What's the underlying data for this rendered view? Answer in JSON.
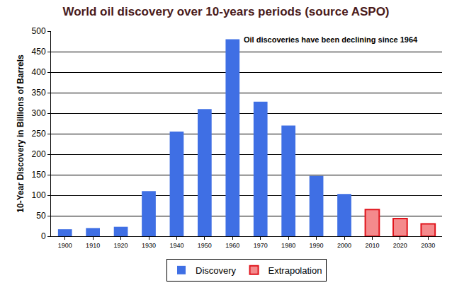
{
  "chart_data": {
    "type": "bar",
    "title": "World oil discovery over 10-years periods (source ASPO)",
    "y_label": "10-Year Discovery in Billions of Barrels",
    "annotation": "Oil discoveries have been declining since 1964",
    "categories": [
      "1900",
      "1910",
      "1920",
      "1930",
      "1940",
      "1950",
      "1960",
      "1970",
      "1980",
      "1990",
      "2000",
      "2010",
      "2020",
      "2030"
    ],
    "series": [
      {
        "name": "Discovery",
        "color": "#3f6fe4",
        "values": [
          17,
          20,
          23,
          110,
          255,
          310,
          480,
          328,
          270,
          147,
          103,
          null,
          null,
          null
        ]
      },
      {
        "name": "Extrapolation",
        "color": "#f48a8c",
        "values": [
          null,
          null,
          null,
          null,
          null,
          null,
          null,
          null,
          null,
          null,
          null,
          65,
          43,
          30
        ]
      }
    ],
    "ylim": [
      0,
      500
    ],
    "yticks": [
      0,
      50,
      100,
      150,
      200,
      250,
      300,
      350,
      400,
      450,
      500
    ],
    "grid": true,
    "legend": "bottom"
  }
}
